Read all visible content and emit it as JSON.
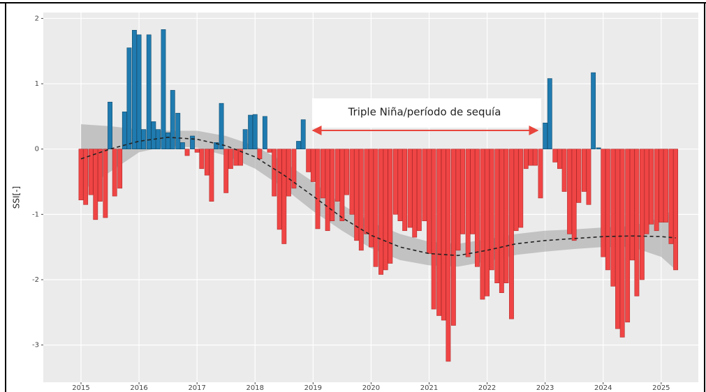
{
  "chart_data": {
    "type": "bar",
    "y_label": "SSI[-]",
    "annotation": "Triple Niña/período de sequía",
    "color_positive": "#1f7bb0",
    "color_negative": "#f04545",
    "grid": true,
    "xlim": [
      2014.35,
      2025.64
    ],
    "ylim": [
      -3.57,
      2.09
    ],
    "xticks": [
      2015,
      2016,
      2017,
      2018,
      2019,
      2020,
      2021,
      2022,
      2023,
      2024,
      2025
    ],
    "yticks": [
      -3,
      -2,
      -1,
      0,
      1,
      2
    ],
    "x": [
      2015.0,
      2015.08,
      2015.17,
      2015.25,
      2015.33,
      2015.42,
      2015.5,
      2015.58,
      2015.67,
      2015.75,
      2015.83,
      2015.92,
      2016.0,
      2016.08,
      2016.17,
      2016.25,
      2016.33,
      2016.42,
      2016.5,
      2016.58,
      2016.67,
      2016.75,
      2016.83,
      2016.92,
      2017.0,
      2017.08,
      2017.17,
      2017.25,
      2017.33,
      2017.42,
      2017.5,
      2017.58,
      2017.67,
      2017.75,
      2017.83,
      2017.92,
      2018.0,
      2018.08,
      2018.17,
      2018.25,
      2018.33,
      2018.42,
      2018.5,
      2018.58,
      2018.67,
      2018.75,
      2018.83,
      2018.92,
      2019.0,
      2019.08,
      2019.17,
      2019.25,
      2019.33,
      2019.42,
      2019.5,
      2019.58,
      2019.67,
      2019.75,
      2019.83,
      2019.92,
      2020.0,
      2020.08,
      2020.17,
      2020.25,
      2020.33,
      2020.42,
      2020.5,
      2020.58,
      2020.67,
      2020.75,
      2020.83,
      2020.92,
      2021.0,
      2021.08,
      2021.17,
      2021.25,
      2021.33,
      2021.42,
      2021.5,
      2021.58,
      2021.67,
      2021.75,
      2021.83,
      2021.92,
      2022.0,
      2022.08,
      2022.17,
      2022.25,
      2022.33,
      2022.42,
      2022.5,
      2022.58,
      2022.67,
      2022.75,
      2022.83,
      2022.92,
      2023.0,
      2023.08,
      2023.17,
      2023.25,
      2023.33,
      2023.42,
      2023.5,
      2023.58,
      2023.67,
      2023.75,
      2023.83,
      2023.92,
      2024.0,
      2024.08,
      2024.17,
      2024.25,
      2024.33,
      2024.42,
      2024.5,
      2024.58,
      2024.67,
      2024.75,
      2024.83,
      2024.92,
      2025.0,
      2025.08,
      2025.17,
      2025.25
    ],
    "values": [
      -0.78,
      -0.85,
      -0.7,
      -1.08,
      -0.8,
      -1.05,
      0.72,
      -0.72,
      -0.6,
      0.57,
      1.55,
      1.82,
      1.75,
      0.3,
      1.75,
      0.42,
      0.3,
      1.83,
      0.25,
      0.9,
      0.55,
      0.1,
      -0.1,
      0.2,
      -0.05,
      -0.3,
      -0.4,
      -0.8,
      0.1,
      0.7,
      -0.67,
      -0.3,
      -0.25,
      -0.25,
      0.3,
      0.52,
      0.53,
      -0.15,
      0.5,
      -0.05,
      -0.72,
      -1.23,
      -1.45,
      -0.72,
      -0.6,
      0.12,
      0.45,
      -0.35,
      -0.5,
      -1.22,
      -0.75,
      -1.25,
      -1.1,
      -0.8,
      -1.1,
      -0.7,
      -1.0,
      -1.4,
      -1.55,
      -1.3,
      -1.5,
      -1.8,
      -1.92,
      -1.85,
      -1.75,
      -1.0,
      -1.1,
      -1.25,
      -1.2,
      -1.35,
      -1.25,
      -1.1,
      -1.6,
      -2.45,
      -2.55,
      -2.62,
      -3.25,
      -2.7,
      -1.55,
      -1.3,
      -1.65,
      -1.3,
      -1.8,
      -2.3,
      -2.25,
      -1.85,
      -2.05,
      -2.2,
      -2.05,
      -2.6,
      -1.25,
      -1.2,
      -0.3,
      -0.25,
      -0.25,
      -0.75,
      0.4,
      1.08,
      -0.2,
      -0.3,
      -0.65,
      -1.3,
      -1.4,
      -0.82,
      -0.65,
      -0.85,
      1.17,
      0.02,
      -1.65,
      -1.85,
      -2.1,
      -2.75,
      -2.88,
      -2.65,
      -1.7,
      -2.25,
      -2.0,
      -1.3,
      -1.15,
      -1.25,
      -1.12,
      -1.12,
      -1.45,
      -1.85
    ],
    "trend": {
      "color": "#222222",
      "band_color": "#a0a0a0",
      "x": [
        2015,
        2015.5,
        2016,
        2016.5,
        2017,
        2017.5,
        2018,
        2018.5,
        2019,
        2019.5,
        2020,
        2020.5,
        2021,
        2021.5,
        2022,
        2022.5,
        2023,
        2023.5,
        2024,
        2024.5,
        2025,
        2025.25
      ],
      "y": [
        -0.15,
        0.0,
        0.12,
        0.18,
        0.15,
        0.05,
        -0.12,
        -0.4,
        -0.72,
        -1.05,
        -1.32,
        -1.5,
        -1.6,
        -1.63,
        -1.55,
        -1.45,
        -1.4,
        -1.37,
        -1.34,
        -1.33,
        -1.34,
        -1.36
      ],
      "lower": [
        -0.65,
        -0.35,
        -0.05,
        0.05,
        0.02,
        -0.1,
        -0.3,
        -0.6,
        -0.95,
        -1.25,
        -1.52,
        -1.7,
        -1.78,
        -1.8,
        -1.72,
        -1.62,
        -1.57,
        -1.53,
        -1.5,
        -1.5,
        -1.65,
        -1.85
      ],
      "upper": [
        0.38,
        0.35,
        0.3,
        0.28,
        0.28,
        0.2,
        0.05,
        -0.2,
        -0.5,
        -0.85,
        -1.12,
        -1.3,
        -1.42,
        -1.45,
        -1.38,
        -1.3,
        -1.25,
        -1.23,
        -1.2,
        -1.18,
        -1.05,
        -0.9
      ]
    }
  }
}
